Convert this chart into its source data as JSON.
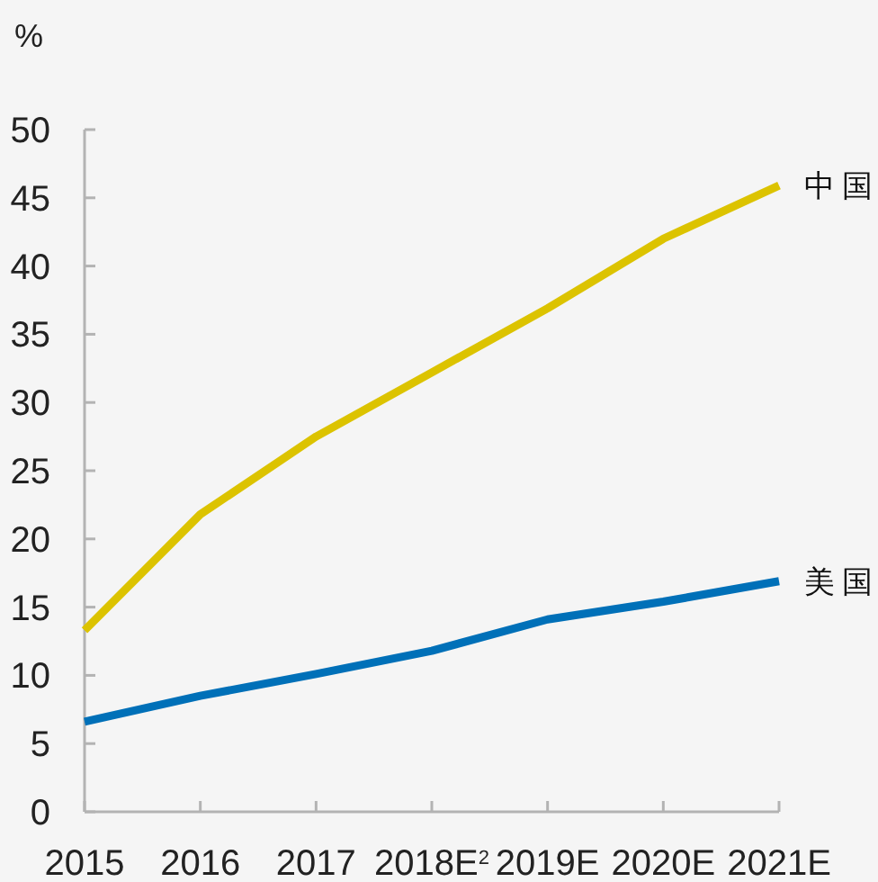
{
  "chart_data": {
    "type": "line",
    "ylabel": "%",
    "categories": [
      "2015",
      "2016",
      "2017",
      "2018E$^{2}$",
      "2019E",
      "2020E",
      "2021E"
    ],
    "series": [
      {
        "name": "中国",
        "color": "#dcc300",
        "values": [
          13.3,
          21.8,
          27.5,
          32.2,
          36.9,
          42.0,
          45.9
        ]
      },
      {
        "name": "美国",
        "color": "#0070b8",
        "values": [
          6.6,
          8.5,
          10.1,
          11.8,
          14.1,
          15.4,
          16.9
        ]
      }
    ],
    "ylim": [
      0,
      50
    ],
    "yticks": [
      0,
      5,
      10,
      15,
      20,
      25,
      30,
      35,
      40,
      45,
      50
    ],
    "line_style": "solid"
  }
}
